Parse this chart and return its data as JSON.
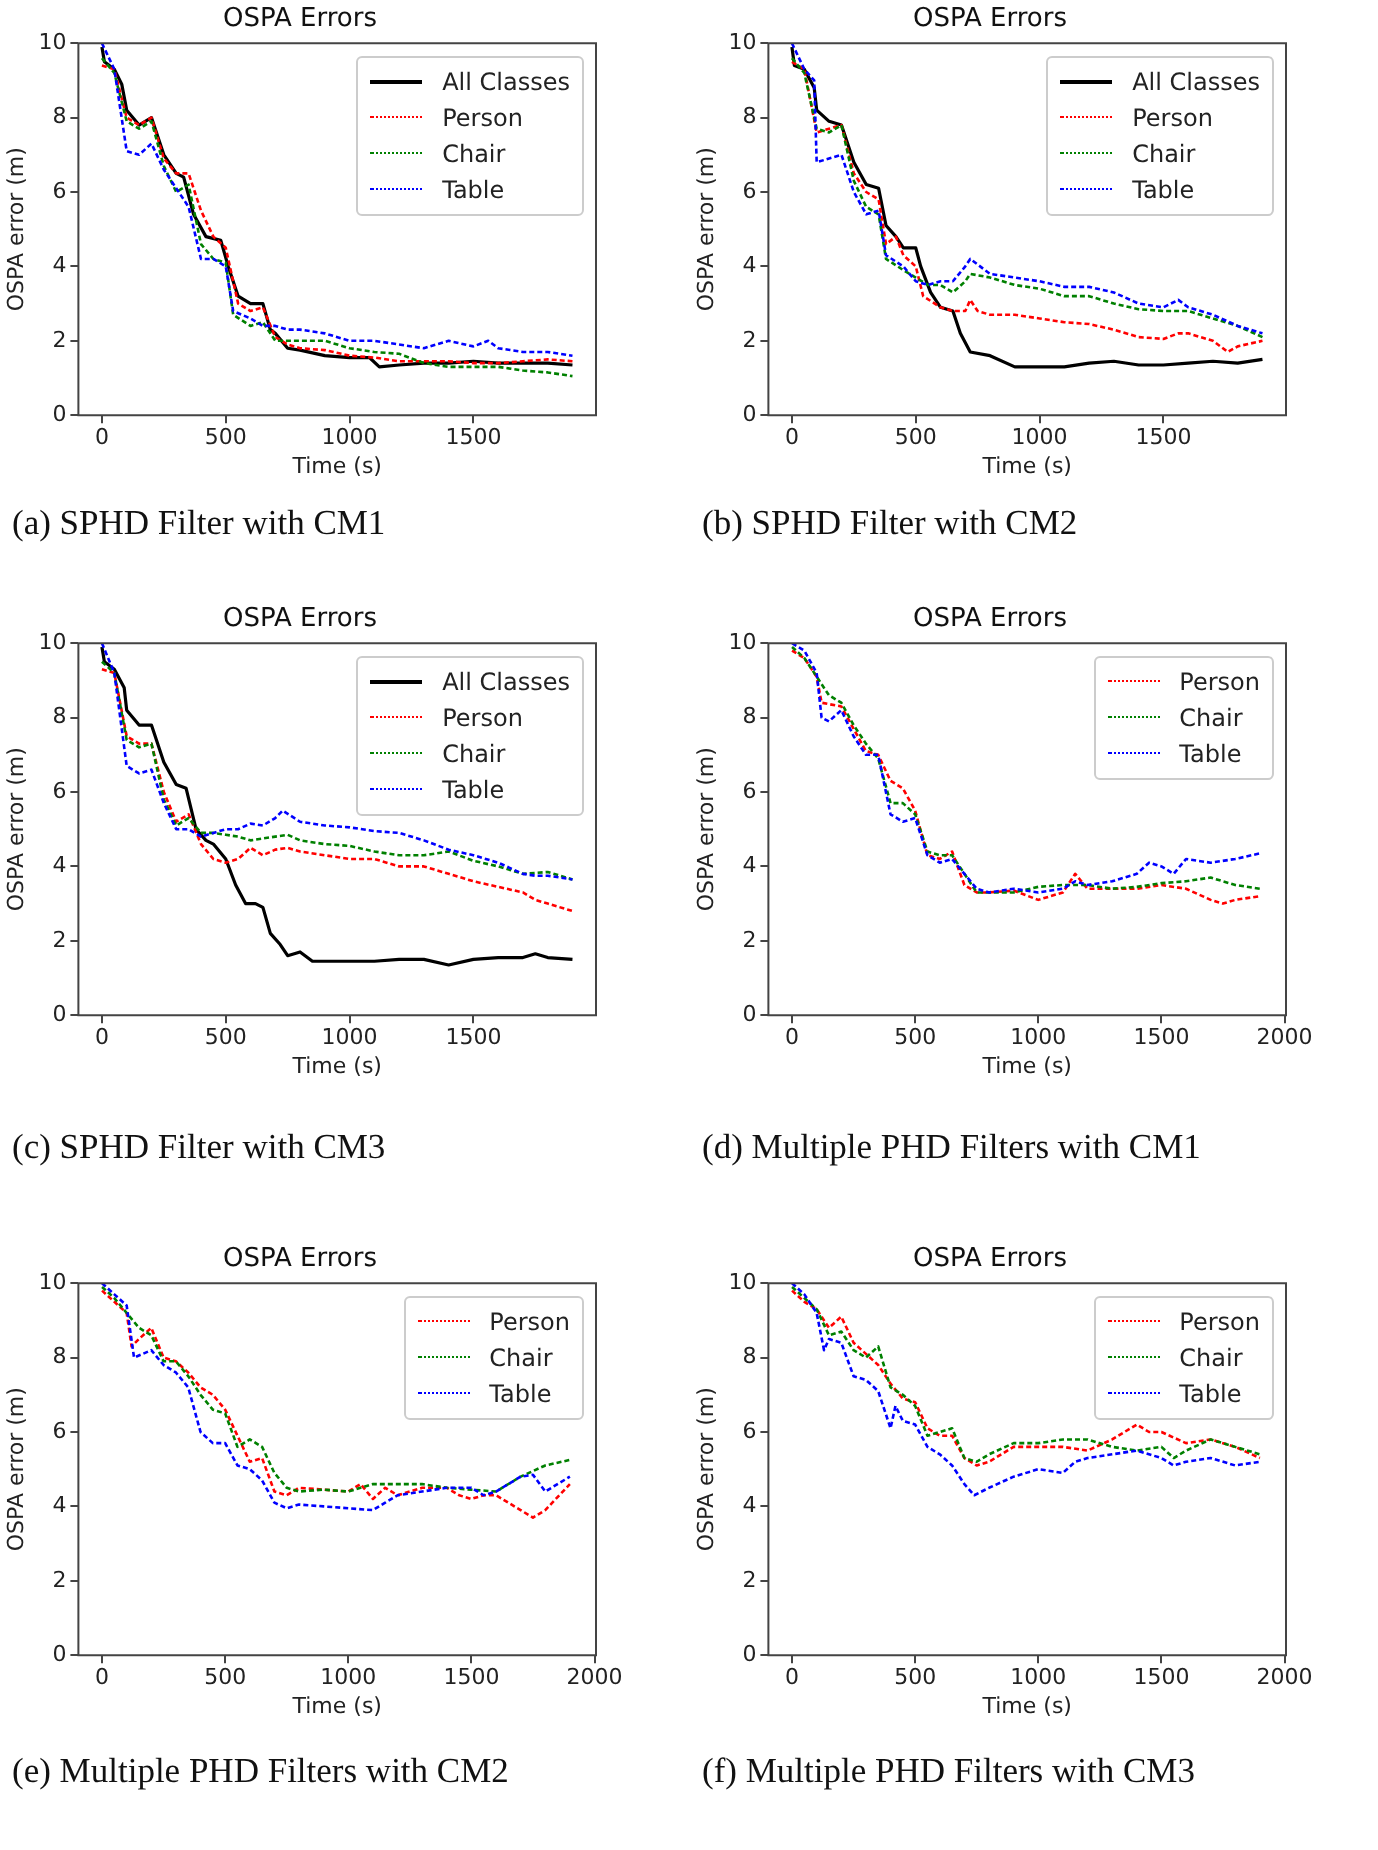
{
  "chart_data": [
    {
      "type": "line",
      "title": "OSPA Errors",
      "xlabel": "Time (s)",
      "ylabel": "OSPA error (m)",
      "annotations": [
        "(a) SPHD Filter with CM1"
      ],
      "xlim": [
        -95,
        1995
      ],
      "ylim": [
        0,
        10
      ],
      "xticks": [
        0,
        500,
        1000,
        1500
      ],
      "yticks": [
        0,
        2,
        4,
        6,
        8,
        10
      ],
      "legend": "top right",
      "series": [
        {
          "name": "All Classes",
          "color": "#000000",
          "line_style": "solid",
          "x": [
            0,
            10,
            50,
            80,
            100,
            150,
            200,
            250,
            300,
            330,
            370,
            420,
            480,
            510,
            550,
            600,
            650,
            680,
            700,
            750,
            800,
            900,
            1000,
            1080,
            1120,
            1200,
            1300,
            1400,
            1500,
            1600,
            1700,
            1800,
            1900
          ],
          "values": [
            9.9,
            9.5,
            9.3,
            8.9,
            8.2,
            7.8,
            8.0,
            7.0,
            6.5,
            6.4,
            5.4,
            4.8,
            4.7,
            4.0,
            3.2,
            3.0,
            3.0,
            2.3,
            2.2,
            1.8,
            1.75,
            1.6,
            1.55,
            1.55,
            1.3,
            1.35,
            1.4,
            1.4,
            1.45,
            1.4,
            1.4,
            1.4,
            1.35
          ]
        },
        {
          "name": "Person",
          "color": "#ff0000",
          "line_style": "dotted",
          "x": [
            0,
            50,
            100,
            150,
            200,
            250,
            300,
            350,
            400,
            450,
            500,
            550,
            600,
            650,
            700,
            750,
            800,
            900,
            1000,
            1100,
            1200,
            1300,
            1400,
            1500,
            1600,
            1700,
            1800,
            1900
          ],
          "values": [
            9.4,
            9.3,
            8.0,
            7.8,
            8.0,
            6.9,
            6.5,
            6.5,
            5.5,
            4.8,
            4.5,
            3.0,
            2.8,
            2.9,
            2.1,
            1.9,
            1.8,
            1.75,
            1.6,
            1.55,
            1.45,
            1.45,
            1.45,
            1.4,
            1.4,
            1.45,
            1.5,
            1.45
          ]
        },
        {
          "name": "Chair",
          "color": "#008000",
          "line_style": "dotted",
          "x": [
            0,
            50,
            100,
            150,
            200,
            250,
            300,
            350,
            400,
            450,
            500,
            530,
            600,
            650,
            700,
            750,
            800,
            900,
            1000,
            1100,
            1200,
            1300,
            1400,
            1500,
            1600,
            1700,
            1800,
            1900
          ],
          "values": [
            9.6,
            9.2,
            7.9,
            7.7,
            7.9,
            6.7,
            6.0,
            6.2,
            4.6,
            4.2,
            4.1,
            2.7,
            2.4,
            2.5,
            2.0,
            2.0,
            2.0,
            2.0,
            1.8,
            1.7,
            1.65,
            1.4,
            1.3,
            1.3,
            1.3,
            1.2,
            1.15,
            1.05
          ]
        },
        {
          "name": "Table",
          "color": "#0000ff",
          "line_style": "dotted",
          "x": [
            0,
            50,
            100,
            150,
            200,
            250,
            300,
            350,
            400,
            450,
            500,
            530,
            600,
            650,
            700,
            750,
            800,
            900,
            1000,
            1100,
            1200,
            1300,
            1400,
            1500,
            1560,
            1600,
            1700,
            1800,
            1900
          ],
          "values": [
            10,
            9.3,
            7.1,
            7.0,
            7.3,
            6.6,
            6.1,
            5.6,
            4.2,
            4.2,
            4.0,
            2.8,
            2.6,
            2.4,
            2.4,
            2.3,
            2.3,
            2.2,
            2.0,
            2.0,
            1.9,
            1.8,
            2.0,
            1.85,
            2.0,
            1.8,
            1.7,
            1.7,
            1.6
          ]
        }
      ]
    },
    {
      "type": "line",
      "title": "OSPA Errors",
      "xlabel": "Time (s)",
      "ylabel": "OSPA error (m)",
      "annotations": [
        "(b) SPHD Filter with CM2"
      ],
      "xlim": [
        -95,
        1995
      ],
      "ylim": [
        0,
        10
      ],
      "xticks": [
        0,
        500,
        1000,
        1500
      ],
      "yticks": [
        0,
        2,
        4,
        6,
        8,
        10
      ],
      "legend": "top right",
      "series": [
        {
          "name": "All Classes",
          "color": "#000000",
          "line_style": "solid",
          "x": [
            0,
            10,
            50,
            90,
            100,
            150,
            200,
            250,
            300,
            350,
            380,
            420,
            450,
            500,
            520,
            560,
            600,
            650,
            680,
            720,
            800,
            900,
            1000,
            1100,
            1200,
            1300,
            1400,
            1500,
            1600,
            1700,
            1800,
            1900
          ],
          "values": [
            9.9,
            9.4,
            9.3,
            8.8,
            8.2,
            7.9,
            7.8,
            6.8,
            6.2,
            6.1,
            5.1,
            4.8,
            4.5,
            4.5,
            4.0,
            3.3,
            2.9,
            2.8,
            2.2,
            1.7,
            1.6,
            1.3,
            1.3,
            1.3,
            1.4,
            1.45,
            1.35,
            1.35,
            1.4,
            1.45,
            1.4,
            1.5
          ]
        },
        {
          "name": "Person",
          "color": "#ff0000",
          "line_style": "dotted",
          "x": [
            0,
            50,
            100,
            150,
            200,
            250,
            300,
            350,
            380,
            420,
            450,
            500,
            530,
            600,
            650,
            700,
            720,
            750,
            800,
            900,
            1000,
            1100,
            1200,
            1300,
            1400,
            1500,
            1560,
            1600,
            1700,
            1760,
            1800,
            1900
          ],
          "values": [
            9.5,
            9.3,
            7.6,
            7.7,
            7.8,
            6.5,
            6.0,
            5.8,
            4.6,
            4.8,
            4.3,
            4.0,
            3.2,
            2.9,
            2.8,
            2.8,
            3.1,
            2.8,
            2.7,
            2.7,
            2.6,
            2.5,
            2.45,
            2.3,
            2.1,
            2.05,
            2.2,
            2.2,
            2.0,
            1.7,
            1.85,
            2.0
          ]
        },
        {
          "name": "Chair",
          "color": "#008000",
          "line_style": "dotted",
          "x": [
            0,
            50,
            100,
            150,
            200,
            250,
            300,
            350,
            380,
            450,
            500,
            550,
            600,
            650,
            700,
            720,
            800,
            900,
            1000,
            1100,
            1200,
            1300,
            1400,
            1500,
            1600,
            1700,
            1800,
            1900
          ],
          "values": [
            9.6,
            9.2,
            7.7,
            7.6,
            7.8,
            6.3,
            5.6,
            5.4,
            4.2,
            3.9,
            3.7,
            3.5,
            3.5,
            3.3,
            3.6,
            3.8,
            3.7,
            3.5,
            3.4,
            3.2,
            3.2,
            3.0,
            2.85,
            2.8,
            2.8,
            2.6,
            2.4,
            2.1
          ]
        },
        {
          "name": "Table",
          "color": "#0000ff",
          "line_style": "dotted",
          "x": [
            0,
            50,
            90,
            100,
            150,
            200,
            250,
            300,
            350,
            380,
            450,
            500,
            550,
            600,
            650,
            700,
            720,
            800,
            900,
            1000,
            1100,
            1200,
            1300,
            1400,
            1500,
            1560,
            1600,
            1700,
            1800,
            1900
          ],
          "values": [
            10,
            9.3,
            9.0,
            6.8,
            6.9,
            7.0,
            6.0,
            5.4,
            5.5,
            4.3,
            4.0,
            3.6,
            3.5,
            3.6,
            3.6,
            4.0,
            4.2,
            3.8,
            3.7,
            3.6,
            3.45,
            3.45,
            3.3,
            3.0,
            2.9,
            3.1,
            2.9,
            2.7,
            2.4,
            2.2
          ]
        }
      ]
    },
    {
      "type": "line",
      "title": "OSPA Errors",
      "xlabel": "Time (s)",
      "ylabel": "OSPA error (m)",
      "annotations": [
        "(c) SPHD Filter with CM3"
      ],
      "xlim": [
        -95,
        1995
      ],
      "ylim": [
        0,
        10
      ],
      "xticks": [
        0,
        500,
        1000,
        1500
      ],
      "yticks": [
        0,
        2,
        4,
        6,
        8,
        10
      ],
      "legend": "top right",
      "series": [
        {
          "name": "All Classes",
          "color": "#000000",
          "line_style": "solid",
          "x": [
            0,
            10,
            50,
            90,
            100,
            150,
            200,
            250,
            300,
            340,
            380,
            420,
            450,
            500,
            540,
            580,
            620,
            650,
            680,
            720,
            750,
            800,
            850,
            1000,
            1100,
            1200,
            1300,
            1400,
            1500,
            1600,
            1700,
            1750,
            1800,
            1900
          ],
          "values": [
            9.9,
            9.5,
            9.3,
            8.8,
            8.2,
            7.8,
            7.8,
            6.8,
            6.2,
            6.1,
            5.0,
            4.7,
            4.6,
            4.2,
            3.5,
            3.0,
            3.0,
            2.9,
            2.2,
            1.9,
            1.6,
            1.7,
            1.45,
            1.45,
            1.45,
            1.5,
            1.5,
            1.35,
            1.5,
            1.55,
            1.55,
            1.65,
            1.55,
            1.5
          ]
        },
        {
          "name": "Person",
          "color": "#ff0000",
          "line_style": "dotted",
          "x": [
            0,
            50,
            100,
            150,
            200,
            250,
            300,
            350,
            400,
            450,
            500,
            550,
            600,
            650,
            700,
            750,
            800,
            900,
            1000,
            1100,
            1200,
            1300,
            1400,
            1500,
            1600,
            1700,
            1750,
            1800,
            1900
          ],
          "values": [
            9.3,
            9.2,
            7.5,
            7.3,
            7.3,
            6.0,
            5.2,
            5.4,
            4.6,
            4.2,
            4.1,
            4.2,
            4.5,
            4.3,
            4.45,
            4.5,
            4.4,
            4.3,
            4.2,
            4.2,
            4.0,
            4.0,
            3.8,
            3.6,
            3.45,
            3.3,
            3.1,
            3.0,
            2.8
          ]
        },
        {
          "name": "Chair",
          "color": "#008000",
          "line_style": "dotted",
          "x": [
            0,
            50,
            100,
            150,
            200,
            250,
            300,
            350,
            400,
            450,
            500,
            550,
            600,
            700,
            750,
            800,
            900,
            1000,
            1100,
            1200,
            1300,
            1400,
            1500,
            1600,
            1700,
            1800,
            1900
          ],
          "values": [
            9.5,
            9.2,
            7.4,
            7.2,
            7.3,
            5.8,
            5.1,
            5.3,
            4.9,
            4.9,
            4.85,
            4.8,
            4.7,
            4.8,
            4.85,
            4.7,
            4.6,
            4.55,
            4.4,
            4.3,
            4.3,
            4.4,
            4.15,
            4.0,
            3.8,
            3.85,
            3.65
          ]
        },
        {
          "name": "Table",
          "color": "#0000ff",
          "line_style": "dotted",
          "x": [
            0,
            50,
            100,
            150,
            200,
            250,
            300,
            350,
            400,
            450,
            500,
            550,
            600,
            650,
            700,
            730,
            800,
            900,
            1000,
            1100,
            1200,
            1300,
            1400,
            1500,
            1600,
            1700,
            1750,
            1800,
            1900
          ],
          "values": [
            10,
            9.2,
            6.7,
            6.5,
            6.6,
            5.7,
            5.0,
            5.0,
            4.8,
            4.9,
            5.0,
            5.0,
            5.15,
            5.1,
            5.3,
            5.5,
            5.2,
            5.1,
            5.05,
            4.95,
            4.9,
            4.7,
            4.45,
            4.3,
            4.1,
            3.8,
            3.75,
            3.75,
            3.65
          ]
        }
      ]
    },
    {
      "type": "line",
      "title": "OSPA Errors",
      "xlabel": "Time (s)",
      "ylabel": "OSPA error (m)",
      "annotations": [
        "(d) Multiple PHD Filters with CM1"
      ],
      "xlim": [
        -96,
        2006
      ],
      "ylim": [
        0,
        10
      ],
      "xticks": [
        0,
        500,
        1000,
        1500,
        2000
      ],
      "yticks": [
        0,
        2,
        4,
        6,
        8,
        10
      ],
      "legend": "top right",
      "series": [
        {
          "name": "Person",
          "color": "#ff0000",
          "line_style": "dotted",
          "x": [
            0,
            50,
            100,
            120,
            200,
            250,
            300,
            350,
            400,
            450,
            500,
            550,
            600,
            650,
            700,
            750,
            800,
            900,
            1000,
            1100,
            1150,
            1200,
            1300,
            1400,
            1500,
            1600,
            1700,
            1750,
            1800,
            1900
          ],
          "values": [
            9.8,
            9.6,
            9.1,
            8.4,
            8.3,
            7.7,
            7.1,
            7.0,
            6.3,
            6.1,
            5.5,
            4.3,
            4.2,
            4.4,
            3.5,
            3.3,
            3.3,
            3.35,
            3.1,
            3.3,
            3.8,
            3.4,
            3.4,
            3.4,
            3.5,
            3.4,
            3.1,
            3.0,
            3.1,
            3.2
          ]
        },
        {
          "name": "Chair",
          "color": "#008000",
          "line_style": "dotted",
          "x": [
            0,
            50,
            100,
            150,
            200,
            250,
            300,
            350,
            400,
            450,
            500,
            550,
            600,
            650,
            700,
            750,
            800,
            900,
            1000,
            1100,
            1200,
            1300,
            1400,
            1500,
            1600,
            1700,
            1800,
            1900
          ],
          "values": [
            9.9,
            9.6,
            9.1,
            8.6,
            8.4,
            7.8,
            7.3,
            6.9,
            5.7,
            5.7,
            5.4,
            4.4,
            4.3,
            4.3,
            3.8,
            3.3,
            3.3,
            3.3,
            3.45,
            3.5,
            3.5,
            3.4,
            3.45,
            3.55,
            3.6,
            3.7,
            3.5,
            3.4
          ]
        },
        {
          "name": "Table",
          "color": "#0000ff",
          "line_style": "dotted",
          "x": [
            0,
            50,
            100,
            120,
            150,
            200,
            250,
            300,
            350,
            400,
            450,
            500,
            550,
            600,
            650,
            700,
            750,
            800,
            900,
            1000,
            1100,
            1150,
            1200,
            1300,
            1400,
            1450,
            1500,
            1550,
            1600,
            1700,
            1800,
            1900
          ],
          "values": [
            10,
            9.8,
            9.2,
            8.0,
            7.9,
            8.2,
            7.5,
            7.0,
            7.0,
            5.4,
            5.2,
            5.3,
            4.3,
            4.1,
            4.2,
            3.8,
            3.4,
            3.3,
            3.4,
            3.3,
            3.4,
            3.6,
            3.5,
            3.6,
            3.8,
            4.1,
            4.0,
            3.8,
            4.2,
            4.1,
            4.2,
            4.35
          ]
        }
      ]
    },
    {
      "type": "line",
      "title": "OSPA Errors",
      "xlabel": "Time (s)",
      "ylabel": "OSPA error (m)",
      "annotations": [
        "(e) Multiple PHD Filters with CM2"
      ],
      "xlim": [
        -96,
        2006
      ],
      "ylim": [
        0,
        10
      ],
      "xticks": [
        0,
        500,
        1000,
        1500,
        2000
      ],
      "yticks": [
        0,
        2,
        4,
        6,
        8,
        10
      ],
      "legend": "top right",
      "series": [
        {
          "name": "Person",
          "color": "#ff0000",
          "line_style": "dotted",
          "x": [
            0,
            50,
            100,
            120,
            150,
            200,
            250,
            300,
            350,
            400,
            450,
            500,
            550,
            600,
            650,
            700,
            750,
            800,
            900,
            1000,
            1050,
            1100,
            1150,
            1200,
            1300,
            1400,
            1450,
            1500,
            1550,
            1600,
            1700,
            1750,
            1800,
            1900
          ],
          "values": [
            9.8,
            9.5,
            9.2,
            8.3,
            8.5,
            8.8,
            8.0,
            7.9,
            7.6,
            7.2,
            7.0,
            6.6,
            5.9,
            5.2,
            5.3,
            4.4,
            4.3,
            4.5,
            4.45,
            4.4,
            4.6,
            4.2,
            4.5,
            4.3,
            4.5,
            4.5,
            4.3,
            4.2,
            4.3,
            4.3,
            3.9,
            3.7,
            3.9,
            4.6
          ]
        },
        {
          "name": "Chair",
          "color": "#008000",
          "line_style": "dotted",
          "x": [
            0,
            50,
            100,
            150,
            200,
            250,
            300,
            350,
            400,
            450,
            500,
            550,
            600,
            650,
            700,
            750,
            800,
            900,
            1000,
            1100,
            1200,
            1300,
            1400,
            1500,
            1600,
            1700,
            1800,
            1900
          ],
          "values": [
            9.9,
            9.6,
            9.2,
            8.8,
            8.6,
            7.9,
            7.9,
            7.5,
            7.0,
            6.6,
            6.5,
            5.6,
            5.8,
            5.6,
            4.9,
            4.5,
            4.4,
            4.45,
            4.4,
            4.6,
            4.6,
            4.6,
            4.5,
            4.45,
            4.4,
            4.8,
            5.1,
            5.25
          ]
        },
        {
          "name": "Table",
          "color": "#0000ff",
          "line_style": "dotted",
          "x": [
            0,
            50,
            100,
            130,
            200,
            250,
            300,
            350,
            400,
            450,
            500,
            550,
            600,
            650,
            700,
            750,
            800,
            900,
            1000,
            1100,
            1150,
            1200,
            1300,
            1400,
            1500,
            1550,
            1600,
            1700,
            1750,
            1800,
            1900
          ],
          "values": [
            10,
            9.7,
            9.4,
            8.0,
            8.2,
            7.8,
            7.6,
            7.2,
            6.0,
            5.7,
            5.7,
            5.1,
            5.0,
            4.7,
            4.1,
            3.95,
            4.05,
            4.0,
            3.95,
            3.9,
            4.1,
            4.3,
            4.4,
            4.5,
            4.5,
            4.3,
            4.4,
            4.8,
            4.85,
            4.4,
            4.8
          ]
        }
      ]
    },
    {
      "type": "line",
      "title": "OSPA Errors",
      "xlabel": "Time (s)",
      "ylabel": "OSPA error (m)",
      "annotations": [
        "(f) Multiple PHD Filters with CM3"
      ],
      "xlim": [
        -96,
        2006
      ],
      "ylim": [
        0,
        10
      ],
      "xticks": [
        0,
        500,
        1000,
        1500,
        2000
      ],
      "yticks": [
        0,
        2,
        4,
        6,
        8,
        10
      ],
      "legend": "top right",
      "series": [
        {
          "name": "Person",
          "color": "#ff0000",
          "line_style": "dotted",
          "x": [
            0,
            50,
            100,
            150,
            200,
            250,
            300,
            350,
            400,
            450,
            500,
            550,
            600,
            650,
            700,
            750,
            800,
            900,
            1000,
            1100,
            1200,
            1300,
            1400,
            1450,
            1500,
            1600,
            1700,
            1800,
            1900
          ],
          "values": [
            9.8,
            9.5,
            9.3,
            8.8,
            9.1,
            8.4,
            8.1,
            7.8,
            7.3,
            6.9,
            6.8,
            6.1,
            5.9,
            5.9,
            5.3,
            5.1,
            5.2,
            5.6,
            5.6,
            5.6,
            5.5,
            5.8,
            6.2,
            6.0,
            6.0,
            5.7,
            5.8,
            5.6,
            5.3
          ]
        },
        {
          "name": "Chair",
          "color": "#008000",
          "line_style": "dotted",
          "x": [
            0,
            50,
            100,
            150,
            200,
            250,
            300,
            350,
            400,
            450,
            500,
            550,
            600,
            650,
            700,
            750,
            800,
            900,
            1000,
            1100,
            1200,
            1300,
            1400,
            1500,
            1550,
            1600,
            1700,
            1800,
            1900
          ],
          "values": [
            9.9,
            9.6,
            9.3,
            8.6,
            8.7,
            8.2,
            8.0,
            8.3,
            7.2,
            7.0,
            6.7,
            5.9,
            6.0,
            6.1,
            5.3,
            5.2,
            5.4,
            5.7,
            5.7,
            5.8,
            5.8,
            5.6,
            5.5,
            5.6,
            5.3,
            5.5,
            5.8,
            5.6,
            5.4
          ]
        },
        {
          "name": "Table",
          "color": "#0000ff",
          "line_style": "dotted",
          "x": [
            0,
            50,
            100,
            130,
            150,
            200,
            250,
            300,
            350,
            400,
            420,
            450,
            500,
            550,
            600,
            650,
            700,
            740,
            800,
            900,
            1000,
            1100,
            1150,
            1200,
            1300,
            1400,
            1500,
            1550,
            1600,
            1700,
            1800,
            1900
          ],
          "values": [
            10,
            9.7,
            9.2,
            8.2,
            8.5,
            8.4,
            7.5,
            7.4,
            7.1,
            6.1,
            6.7,
            6.3,
            6.2,
            5.6,
            5.4,
            5.1,
            4.6,
            4.3,
            4.5,
            4.8,
            5.0,
            4.9,
            5.2,
            5.3,
            5.4,
            5.5,
            5.3,
            5.1,
            5.2,
            5.3,
            5.1,
            5.2
          ]
        }
      ]
    }
  ]
}
